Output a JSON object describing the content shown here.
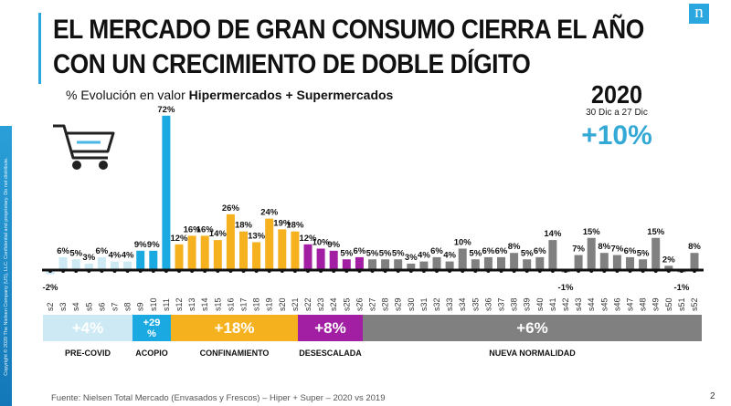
{
  "copyright": "Copyright © 2020 The Nielsen Company (US), LLC. Confidential and proprietary. Do not distribute.",
  "title_line1": "EL MERCADO DE GRAN CONSUMO CIERRA EL AÑO",
  "title_line2": "CON UN CRECIMIENTO DE DOBLE DÍGITO",
  "subtitle_prefix": "% Evolución en valor ",
  "subtitle_bold": "Hipermercados + Supermercados",
  "logo": "n",
  "summary": {
    "year": "2020",
    "range": "30 Dic a 27 Dic",
    "total": "+10%"
  },
  "colors": {
    "precovid": "#cde9f4",
    "acopio": "#1ba9e1",
    "confinamiento": "#f6b11f",
    "desescalada": "#a21fa3",
    "normalidad": "#808080",
    "accent": "#2aa7df"
  },
  "phases": [
    {
      "name": "PRE-COVID",
      "value": "+4%"
    },
    {
      "name": "ACOPIO",
      "value": "+29 %"
    },
    {
      "name": "CONFINAMIENTO",
      "value": "+18%"
    },
    {
      "name": "DESESCALADA",
      "value": "+8%"
    },
    {
      "name": "NUEVA NORMALIDAD",
      "value": "+6%"
    }
  ],
  "chart_data": {
    "type": "bar",
    "title": "% Evolución en valor Hipermercados + Supermercados",
    "xlabel": "",
    "ylabel": "%",
    "ylim": [
      -2,
      72
    ],
    "grid": false,
    "categories": [
      "s2",
      "s3",
      "s4",
      "s5",
      "s6",
      "s7",
      "s8",
      "s9",
      "s10",
      "s11",
      "s12",
      "s13",
      "s14",
      "s15",
      "s16",
      "s17",
      "s18",
      "s19",
      "s20",
      "s21",
      "s22",
      "s23",
      "s24",
      "s25",
      "s26",
      "s27",
      "s28",
      "s29",
      "s30",
      "s31",
      "s32",
      "s33",
      "s34",
      "s35",
      "s36",
      "s37",
      "s38",
      "s39",
      "s40",
      "s41",
      "s42",
      "s43",
      "s44",
      "s45",
      "s46",
      "s47",
      "s48",
      "s49",
      "s50",
      "s51",
      "s52"
    ],
    "values": [
      -2,
      6,
      5,
      3,
      6,
      4,
      4,
      9,
      9,
      72,
      12,
      16,
      16,
      14,
      26,
      18,
      13,
      24,
      19,
      18,
      12,
      10,
      9,
      5,
      6,
      5,
      5,
      5,
      3,
      4,
      6,
      4,
      10,
      5,
      6,
      6,
      8,
      5,
      6,
      14,
      -1,
      7,
      15,
      8,
      7,
      6,
      5,
      15,
      2,
      -1,
      8
    ],
    "phase_index": [
      0,
      0,
      0,
      0,
      0,
      0,
      0,
      1,
      1,
      1,
      2,
      2,
      2,
      2,
      2,
      2,
      2,
      2,
      2,
      2,
      3,
      3,
      3,
      3,
      3,
      4,
      4,
      4,
      4,
      4,
      4,
      4,
      4,
      4,
      4,
      4,
      4,
      4,
      4,
      4,
      4,
      4,
      4,
      4,
      4,
      4,
      4,
      4,
      4,
      4,
      4
    ]
  },
  "footer": "Fuente: Nielsen Total Mercado (Envasados y Frescos) – Hiper + Super – 2020 vs 2019",
  "page_number": "2"
}
